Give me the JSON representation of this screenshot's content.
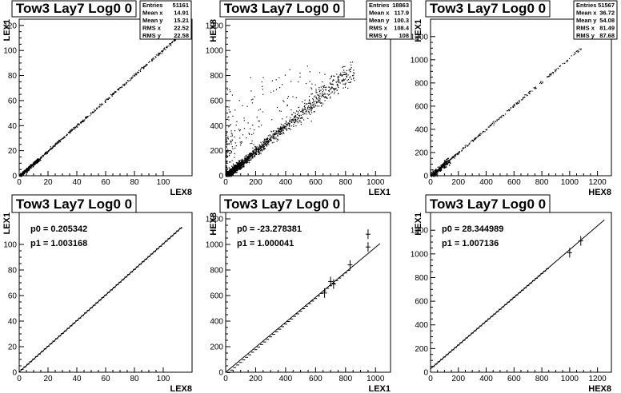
{
  "chart_data": [
    {
      "type": "scatter",
      "title": "Tow3 Lay7 Log0 0",
      "xlabel": "LEX8",
      "ylabel": "LEX1",
      "xlim": [
        0,
        120
      ],
      "ylim": [
        0,
        125
      ],
      "xticks": [
        0,
        20,
        40,
        60,
        80,
        100
      ],
      "yticks": [
        0,
        20,
        40,
        60,
        80,
        100,
        120
      ],
      "trend": {
        "from": [
          0,
          0
        ],
        "to": [
          112,
          113
        ]
      },
      "stats": [
        {
          "label": "Entries",
          "value": "51161"
        },
        {
          "label": "Mean x",
          "value": "14.91"
        },
        {
          "label": "Mean y",
          "value": "15.21"
        },
        {
          "label": "RMS x",
          "value": "22.52"
        },
        {
          "label": "RMS y",
          "value": "22.58"
        }
      ]
    },
    {
      "type": "scatter",
      "title": "Tow3 Lay7 Log0 0",
      "xlabel": "LEX1",
      "ylabel": "HEX8",
      "xlim": [
        0,
        1100
      ],
      "ylim": [
        0,
        1250
      ],
      "xticks": [
        0,
        200,
        400,
        600,
        800,
        1000
      ],
      "yticks": [
        0,
        200,
        400,
        600,
        800,
        1000,
        1200
      ],
      "trend": {
        "from": [
          0,
          0
        ],
        "to": [
          850,
          850
        ]
      },
      "stats": [
        {
          "label": "Entries",
          "value": "18863"
        },
        {
          "label": "Mean x",
          "value": "117.9"
        },
        {
          "label": "Mean y",
          "value": "100.3"
        },
        {
          "label": "RMS x",
          "value": "108.4"
        },
        {
          "label": "RMS y",
          "value": "108"
        }
      ]
    },
    {
      "type": "scatter",
      "title": "Tow3 Lay7 Log0 0",
      "xlabel": "HEX8",
      "ylabel": "HEX1",
      "xlim": [
        0,
        1300
      ],
      "ylim": [
        0,
        1350
      ],
      "xticks": [
        0,
        200,
        400,
        600,
        800,
        1000,
        1200
      ],
      "yticks": [
        0,
        200,
        400,
        600,
        800,
        1000,
        1200
      ],
      "trend": {
        "from": [
          0,
          0
        ],
        "to": [
          1080,
          1100
        ]
      },
      "stats": [
        {
          "label": "Entries",
          "value": "51567"
        },
        {
          "label": "Mean x",
          "value": "36.72"
        },
        {
          "label": "Mean y",
          "value": "54.08"
        },
        {
          "label": "RMS x",
          "value": "81.49"
        },
        {
          "label": "RMS y",
          "value": "87.68"
        }
      ]
    },
    {
      "type": "line",
      "title": "Tow3 Lay7 Log0 0",
      "xlabel": "LEX8",
      "ylabel": "LEX1",
      "xlim": [
        0,
        120
      ],
      "ylim": [
        0,
        125
      ],
      "xticks": [
        0,
        20,
        40,
        60,
        80,
        100
      ],
      "yticks": [
        0,
        20,
        40,
        60,
        80,
        100
      ],
      "fit": {
        "p0": 0.205342,
        "p1": 1.003168,
        "xrange": [
          0,
          113
        ]
      },
      "fit_text": [
        "p0 = 0.205342",
        "p1 = 1.003168"
      ],
      "profile": {
        "xrange": [
          2,
          112
        ],
        "step": 2
      }
    },
    {
      "type": "line",
      "title": "Tow3 Lay7 Log0 0",
      "xlabel": "LEX1",
      "ylabel": "HEX8",
      "xlim": [
        0,
        1100
      ],
      "ylim": [
        0,
        1250
      ],
      "xticks": [
        0,
        200,
        400,
        600,
        800,
        1000
      ],
      "yticks": [
        0,
        200,
        400,
        600,
        800,
        1000,
        1200
      ],
      "fit": {
        "p0": -23.278381,
        "p1": 1.000041,
        "xrange": [
          0,
          1030
        ]
      },
      "fit_text": [
        "p0 = -23.278381",
        "p1 = 1.000041"
      ],
      "profile": {
        "xrange": [
          20,
          820
        ],
        "step": 20
      },
      "outliers": [
        [
          660,
          620
        ],
        [
          700,
          710
        ],
        [
          720,
          690
        ],
        [
          830,
          840
        ],
        [
          950,
          980
        ],
        [
          950,
          1080
        ]
      ]
    },
    {
      "type": "line",
      "title": "Tow3 Lay7 Log0 0",
      "xlabel": "HEX8",
      "ylabel": "HEX1",
      "xlim": [
        0,
        1300
      ],
      "ylim": [
        0,
        1350
      ],
      "xticks": [
        0,
        200,
        400,
        600,
        800,
        1000,
        1200
      ],
      "yticks": [
        0,
        200,
        400,
        600,
        800,
        1000,
        1200
      ],
      "fit": {
        "p0": 28.344989,
        "p1": 1.007136,
        "xrange": [
          0,
          1250
        ]
      },
      "fit_text": [
        "p0 = 28.344989",
        "p1 = 1.007136"
      ],
      "profile": {
        "xrange": [
          20,
          840
        ],
        "step": 20
      },
      "outliers": [
        [
          1000,
          1010
        ],
        [
          1080,
          1110
        ]
      ]
    }
  ]
}
